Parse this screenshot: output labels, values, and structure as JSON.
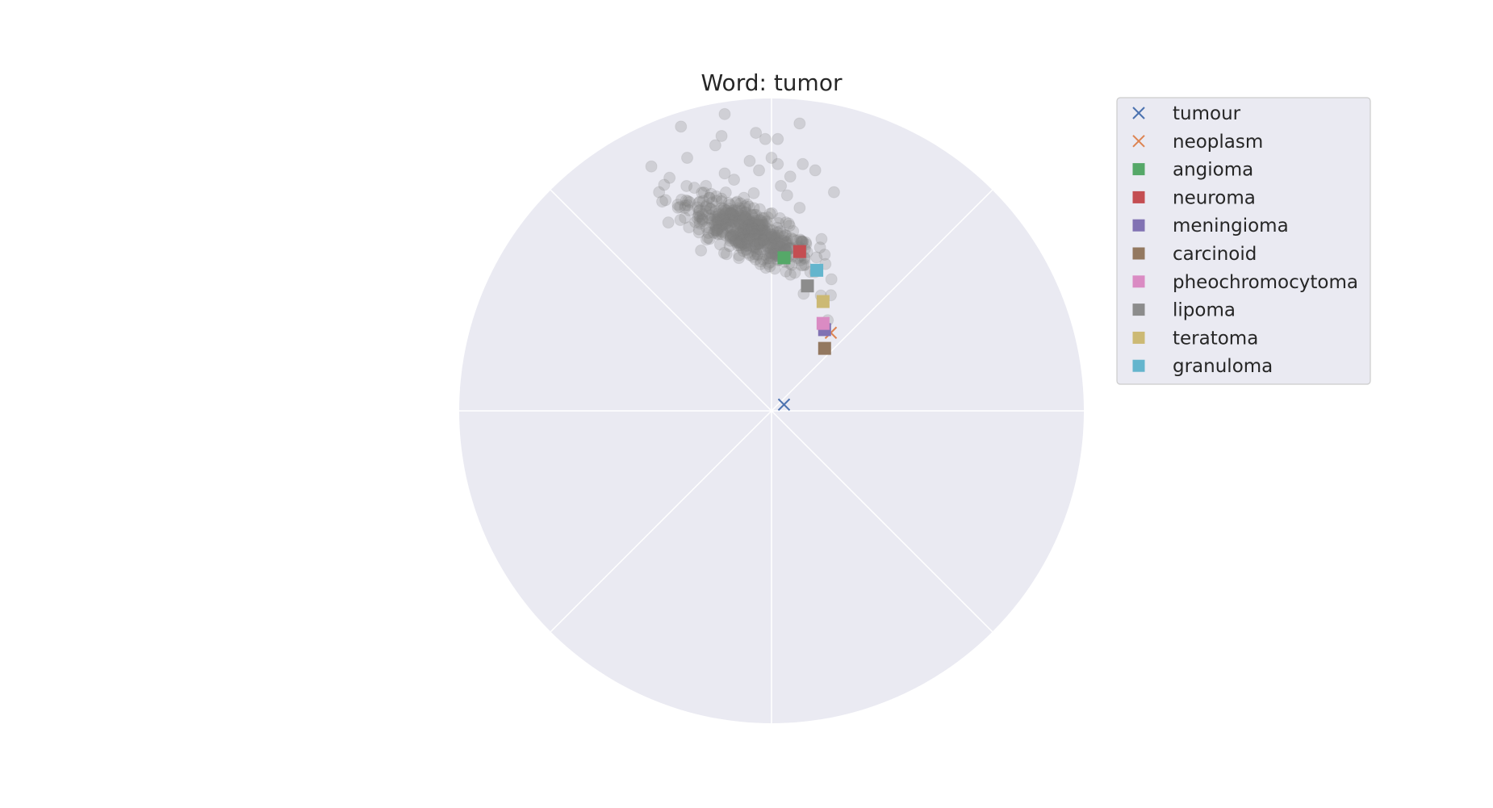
{
  "chart_data": {
    "type": "scatter",
    "projection": "polar (Poincaré disk)",
    "title": "Word: tumor",
    "grid": true,
    "legend_placement": "upper right, outside plot",
    "center_marker": {
      "name": "tumour",
      "x": 0.04,
      "y": 0.02,
      "marker": "x",
      "color": "#4c72b0"
    },
    "series": [
      {
        "name": "tumour",
        "marker": "x",
        "color": "#4c72b0",
        "points": [
          [
            0.04,
            0.02
          ]
        ]
      },
      {
        "name": "neoplasm",
        "marker": "x",
        "color": "#dd8452",
        "points": [
          [
            0.19,
            0.25
          ]
        ]
      },
      {
        "name": "angioma",
        "marker": "square",
        "color": "#55a868",
        "points": [
          [
            0.04,
            0.49
          ]
        ]
      },
      {
        "name": "neuroma",
        "marker": "square",
        "color": "#c44e52",
        "points": [
          [
            0.09,
            0.51
          ]
        ]
      },
      {
        "name": "meningioma",
        "marker": "square",
        "color": "#8172b3",
        "points": [
          [
            0.17,
            0.26
          ]
        ]
      },
      {
        "name": "carcinoid",
        "marker": "square",
        "color": "#937860",
        "points": [
          [
            0.17,
            0.2
          ]
        ]
      },
      {
        "name": "pheochromocytoma",
        "marker": "square",
        "color": "#da8bc3",
        "points": [
          [
            0.165,
            0.28
          ]
        ]
      },
      {
        "name": "lipoma",
        "marker": "square",
        "color": "#8c8c8c",
        "points": [
          [
            0.115,
            0.4
          ]
        ]
      },
      {
        "name": "teratoma",
        "marker": "square",
        "color": "#ccb974",
        "points": [
          [
            0.165,
            0.35
          ]
        ]
      },
      {
        "name": "granuloma",
        "marker": "square",
        "color": "#64b5cd",
        "points": [
          [
            0.145,
            0.45
          ]
        ]
      }
    ],
    "background_points": {
      "color": "#808080",
      "alpha": 0.25,
      "outliers": [
        [
          -0.29,
          0.91
        ],
        [
          -0.15,
          0.95
        ],
        [
          -0.16,
          0.88
        ],
        [
          -0.18,
          0.85
        ],
        [
          -0.05,
          0.89
        ],
        [
          -0.02,
          0.87
        ],
        [
          0.09,
          0.92
        ],
        [
          0.02,
          0.87
        ],
        [
          -0.27,
          0.81
        ],
        [
          -0.15,
          0.76
        ],
        [
          -0.07,
          0.8
        ],
        [
          0.0,
          0.81
        ],
        [
          0.02,
          0.79
        ],
        [
          0.1,
          0.79
        ],
        [
          -0.04,
          0.77
        ],
        [
          0.06,
          0.75
        ],
        [
          0.14,
          0.77
        ],
        [
          0.03,
          0.72
        ],
        [
          -0.36,
          0.7
        ],
        [
          -0.35,
          0.67
        ],
        [
          0.2,
          0.7
        ],
        [
          0.09,
          0.65
        ],
        [
          0.05,
          0.69
        ],
        [
          0.16,
          0.55
        ],
        [
          0.17,
          0.5
        ],
        [
          0.19,
          0.37
        ],
        [
          0.18,
          0.29
        ],
        [
          -0.3,
          0.66
        ],
        [
          -0.21,
          0.72
        ],
        [
          -0.12,
          0.74
        ]
      ],
      "cluster": {
        "center": [
          -0.07,
          0.57
        ],
        "direction": [
          0.8,
          -0.42
        ],
        "spread_along": 0.12,
        "spread_across": 0.04,
        "count": 520
      }
    },
    "angular_gridlines_deg": [
      0,
      45,
      90,
      135,
      180,
      225,
      270,
      315
    ],
    "radial_range": [
      0,
      1
    ]
  }
}
